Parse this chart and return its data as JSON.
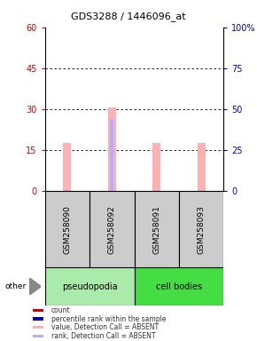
{
  "title": "GDS3288 / 1446096_at",
  "samples": [
    "GSM258090",
    "GSM258092",
    "GSM258091",
    "GSM258093"
  ],
  "groups": [
    "pseudopodia",
    "pseudopodia",
    "cell bodies",
    "cell bodies"
  ],
  "bar_values_pink": [
    17.5,
    30.5,
    17.5,
    17.5
  ],
  "bar_values_blue": [
    0.3,
    26.5,
    0.3,
    0.3
  ],
  "ylim_left": [
    0,
    60
  ],
  "ylim_right": [
    0,
    100
  ],
  "yticks_left": [
    0,
    15,
    30,
    45,
    60
  ],
  "yticks_right": [
    0,
    25,
    50,
    75,
    100
  ],
  "left_tick_labels": [
    "0",
    "15",
    "30",
    "45",
    "60"
  ],
  "right_tick_labels": [
    "0",
    "25",
    "50",
    "75",
    "100%"
  ],
  "left_color": "#cc0000",
  "right_color": "#0000cc",
  "group_colors": {
    "pseudopodia": "#aaeaaa",
    "cell bodies": "#44dd44"
  },
  "bar_color_pink": "#ffb0b0",
  "bar_color_blue": "#b0b0ff",
  "bar_width": 0.18,
  "legend_items": [
    {
      "color": "#cc0000",
      "label": "count"
    },
    {
      "color": "#0000cc",
      "label": "percentile rank within the sample"
    },
    {
      "color": "#ffb0b0",
      "label": "value, Detection Call = ABSENT"
    },
    {
      "color": "#b0b0ff",
      "label": "rank, Detection Call = ABSENT"
    }
  ],
  "other_label": "other",
  "arrow_color": "#888888",
  "sample_box_color": "#cccccc",
  "grid_color": "#000000"
}
